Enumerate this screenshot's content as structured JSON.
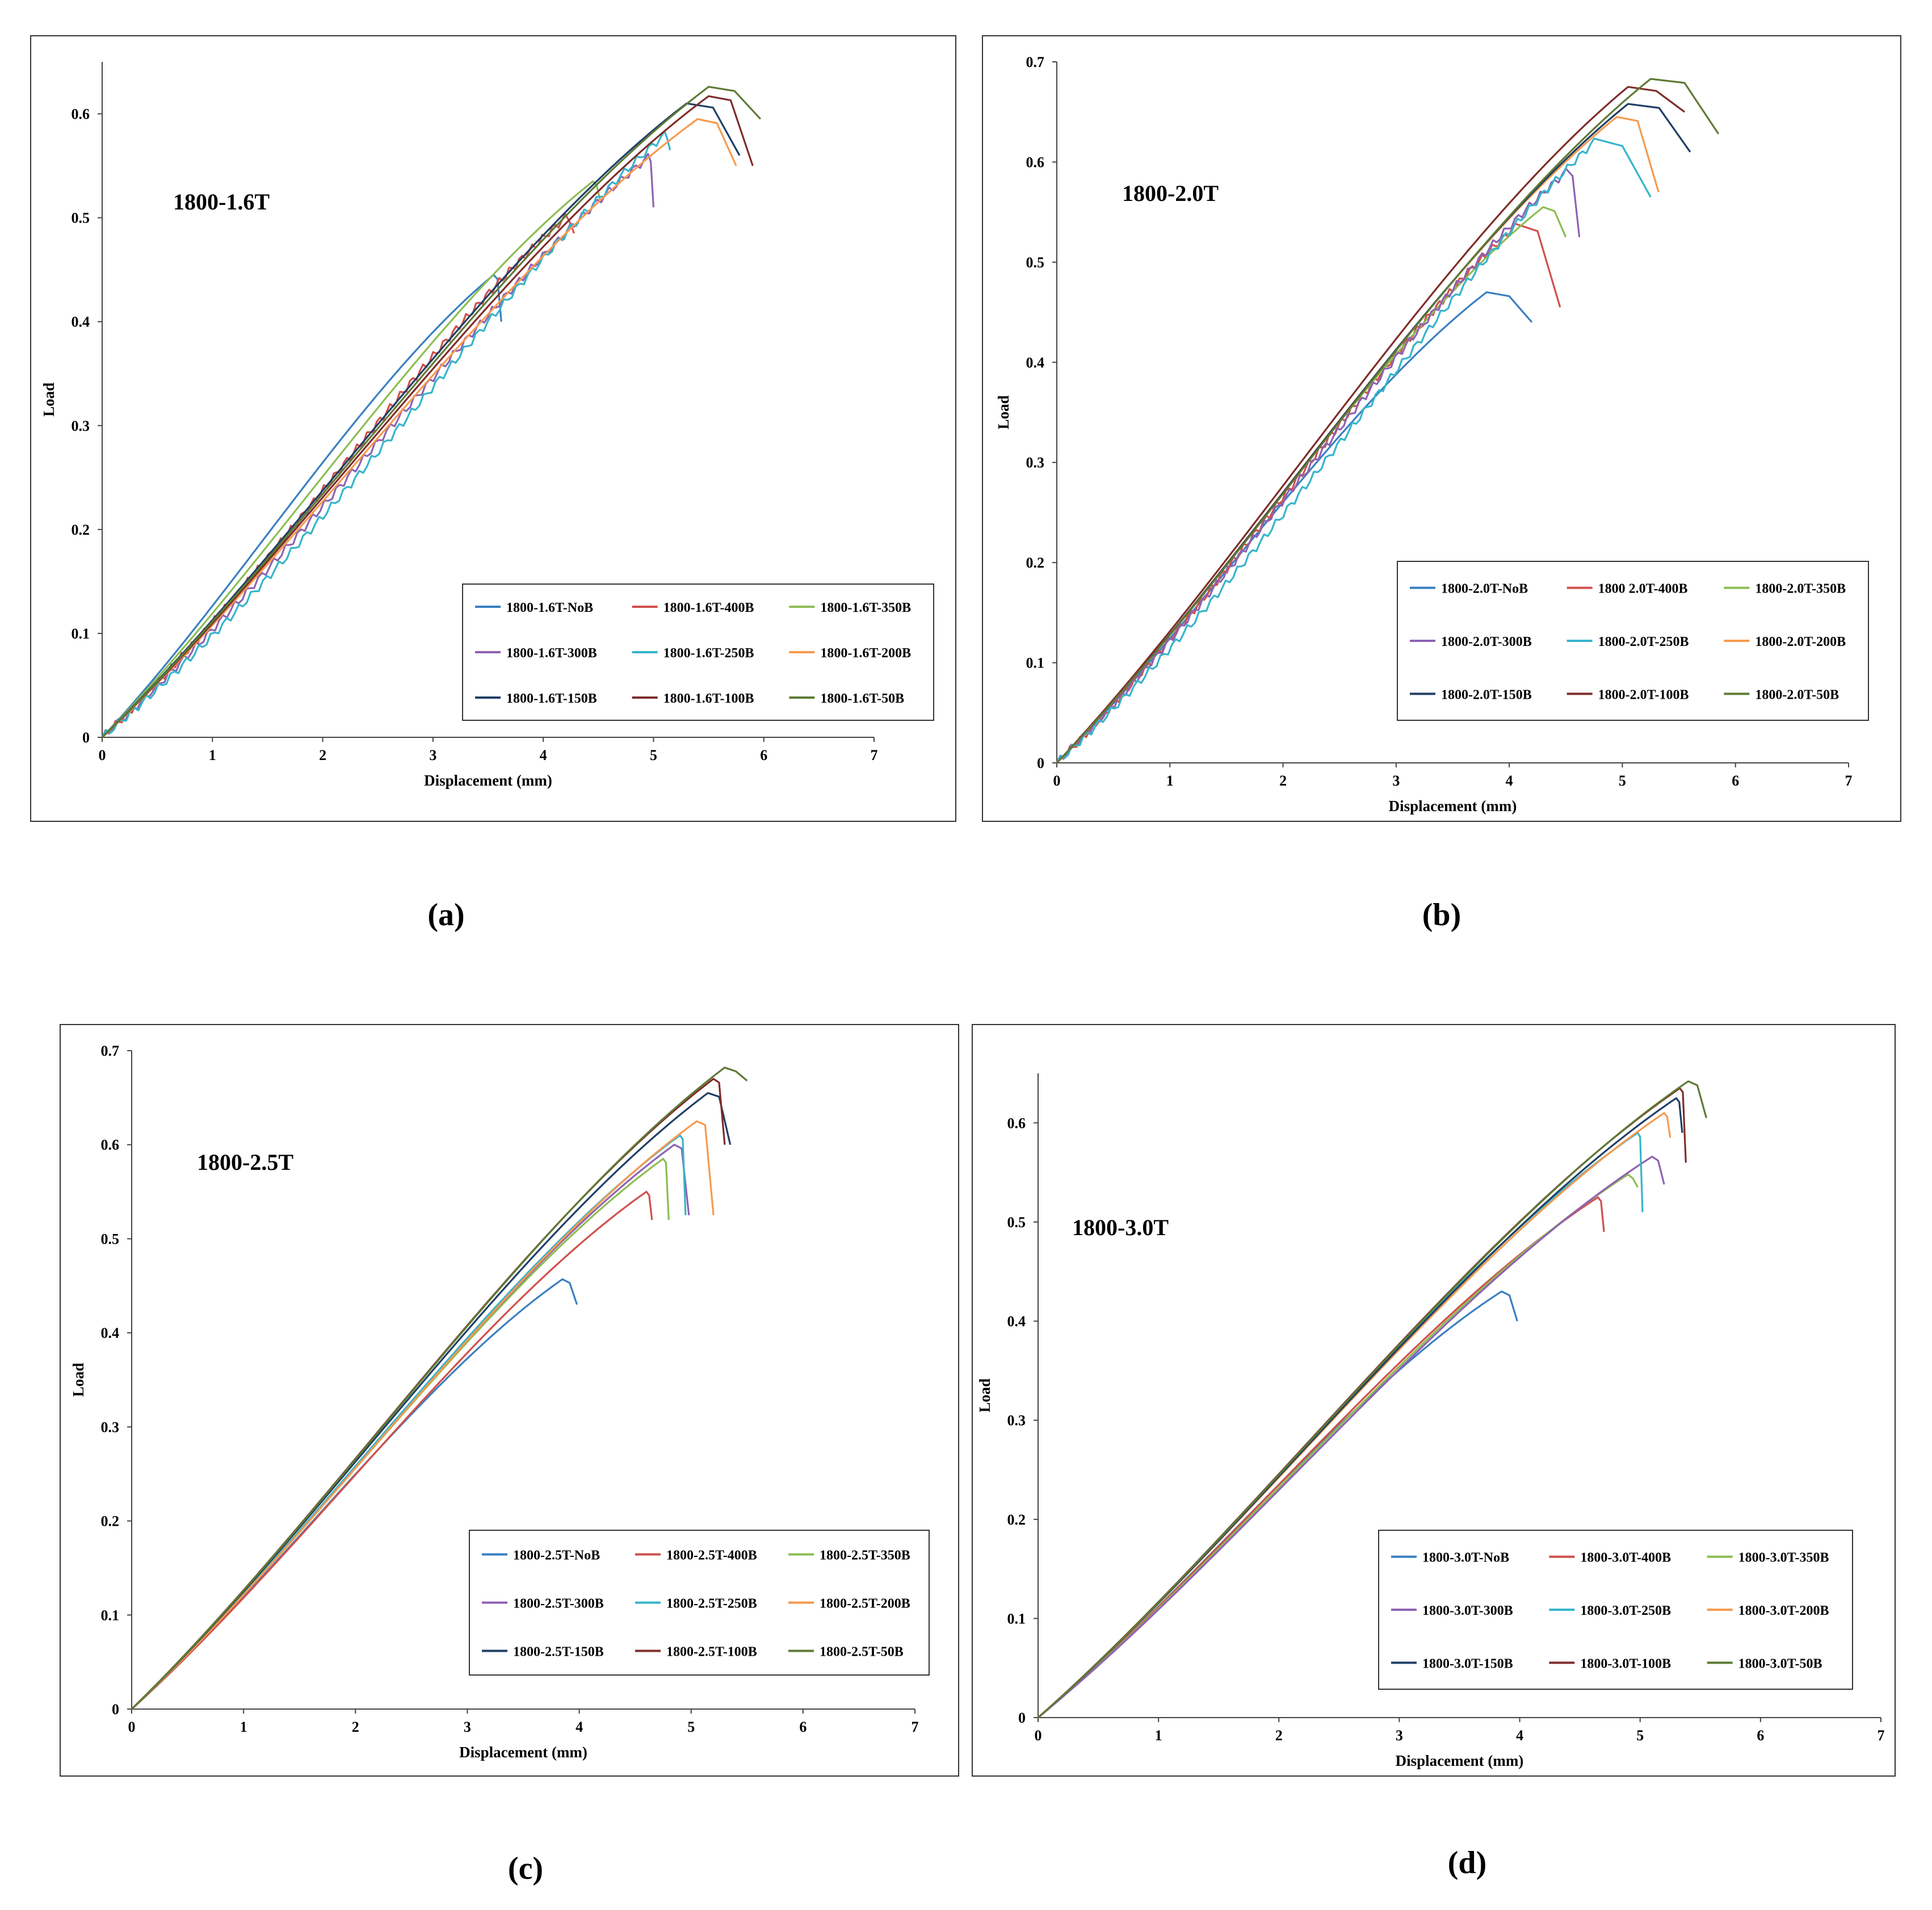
{
  "figure": {
    "captions": [
      "(a)",
      "(b)",
      "(c)",
      "(d)"
    ]
  },
  "chart_data": [
    {
      "type": "line",
      "panel_label": "(a)",
      "title": "1800-1.6T",
      "xlabel": "Displacement (mm)",
      "ylabel": "Load",
      "xlim": [
        0,
        7
      ],
      "ylim": [
        0,
        0.65
      ],
      "x_ticks": [
        "0",
        "1",
        "2",
        "3",
        "4",
        "5",
        "6",
        "7"
      ],
      "y_ticks": [
        "0",
        "0.1",
        "0.2",
        "0.3",
        "0.4",
        "0.5",
        "0.6"
      ],
      "y_tick_values": [
        0,
        0.1,
        0.2,
        0.3,
        0.4,
        0.5,
        0.6
      ],
      "legend_position": "bottom-right",
      "series": [
        {
          "name": "1800-1.6T-NoB",
          "color": "#3a7fc1",
          "peak_x": 3.55,
          "peak_y": 0.445,
          "end_x": 3.62,
          "end_y": 0.4
        },
        {
          "name": "1800-1.6T-400B",
          "color": "#d0504c",
          "peak_x": 4.2,
          "peak_y": 0.5,
          "end_x": 4.28,
          "end_y": 0.485
        },
        {
          "name": "1800-1.6T-350B",
          "color": "#8cbd52",
          "peak_x": 4.45,
          "peak_y": 0.535,
          "end_x": 4.52,
          "end_y": 0.515
        },
        {
          "name": "1800-1.6T-300B",
          "color": "#8f62b3",
          "peak_x": 4.95,
          "peak_y": 0.558,
          "end_x": 5.0,
          "end_y": 0.51
        },
        {
          "name": "1800-1.6T-250B",
          "color": "#36b4cc",
          "peak_x": 5.1,
          "peak_y": 0.58,
          "end_x": 5.15,
          "end_y": 0.565
        },
        {
          "name": "1800-1.6T-200B",
          "color": "#f79a4e",
          "peak_x": 5.4,
          "peak_y": 0.595,
          "end_x": 5.75,
          "end_y": 0.55
        },
        {
          "name": "1800-1.6T-150B",
          "color": "#203f66",
          "peak_x": 5.3,
          "peak_y": 0.61,
          "end_x": 5.78,
          "end_y": 0.56
        },
        {
          "name": "1800-1.6T-100B",
          "color": "#7f2d2a",
          "peak_x": 5.5,
          "peak_y": 0.617,
          "end_x": 5.9,
          "end_y": 0.55
        },
        {
          "name": "1800-1.6T-50B",
          "color": "#5e7a35",
          "peak_x": 5.5,
          "peak_y": 0.626,
          "end_x": 5.97,
          "end_y": 0.595
        }
      ]
    },
    {
      "type": "line",
      "panel_label": "(b)",
      "title": "1800-2.0T",
      "xlabel": "Displacement (mm)",
      "ylabel": "Load",
      "xlim": [
        0,
        7
      ],
      "ylim": [
        0,
        0.7
      ],
      "x_ticks": [
        "0",
        "1",
        "2",
        "3",
        "4",
        "5",
        "6",
        "7"
      ],
      "y_ticks": [
        "0",
        "0.1",
        "0.2",
        "0.3",
        "0.4",
        "0.5",
        "0.6",
        "0.7"
      ],
      "y_tick_values": [
        0,
        0.1,
        0.2,
        0.3,
        0.4,
        0.5,
        0.6,
        0.7
      ],
      "legend_position": "bottom-right",
      "series": [
        {
          "name": "1800-2.0T-NoB",
          "color": "#3a7fc1",
          "peak_x": 3.8,
          "peak_y": 0.47,
          "end_x": 4.2,
          "end_y": 0.44
        },
        {
          "name": "1800 2.0T-400B",
          "color": "#d0504c",
          "peak_x": 4.05,
          "peak_y": 0.535,
          "end_x": 4.45,
          "end_y": 0.455
        },
        {
          "name": "1800-2.0T-350B",
          "color": "#8cbd52",
          "peak_x": 4.3,
          "peak_y": 0.555,
          "end_x": 4.5,
          "end_y": 0.525
        },
        {
          "name": "1800-2.0T-300B",
          "color": "#8f62b3",
          "peak_x": 4.5,
          "peak_y": 0.59,
          "end_x": 4.62,
          "end_y": 0.525
        },
        {
          "name": "1800-2.0T-250B",
          "color": "#36b4cc",
          "peak_x": 4.75,
          "peak_y": 0.62,
          "end_x": 5.25,
          "end_y": 0.565
        },
        {
          "name": "1800-2.0T-200B",
          "color": "#f79a4e",
          "peak_x": 4.95,
          "peak_y": 0.645,
          "end_x": 5.32,
          "end_y": 0.57
        },
        {
          "name": "1800-2.0T-150B",
          "color": "#203f66",
          "peak_x": 5.05,
          "peak_y": 0.658,
          "end_x": 5.6,
          "end_y": 0.61
        },
        {
          "name": "1800-2.0T-100B",
          "color": "#7f2d2a",
          "peak_x": 5.05,
          "peak_y": 0.675,
          "end_x": 5.55,
          "end_y": 0.65
        },
        {
          "name": "1800-2.0T-50B",
          "color": "#5e7a35",
          "peak_x": 5.25,
          "peak_y": 0.683,
          "end_x": 5.85,
          "end_y": 0.628
        }
      ]
    },
    {
      "type": "line",
      "panel_label": "(c)",
      "title": "1800-2.5T",
      "xlabel": "Displacement (mm)",
      "ylabel": "Load",
      "xlim": [
        0,
        7
      ],
      "ylim": [
        0,
        0.7
      ],
      "x_ticks": [
        "0",
        "1",
        "2",
        "3",
        "4",
        "5",
        "6",
        "7"
      ],
      "y_ticks": [
        "0",
        "0.1",
        "0.2",
        "0.3",
        "0.4",
        "0.5",
        "0.6",
        "0.7"
      ],
      "y_tick_values": [
        0,
        0.1,
        0.2,
        0.3,
        0.4,
        0.5,
        0.6,
        0.7
      ],
      "legend_position": "bottom-right",
      "series": [
        {
          "name": "1800-2.5T-NoB",
          "color": "#3a7fc1",
          "peak_x": 3.85,
          "peak_y": 0.457,
          "end_x": 3.98,
          "end_y": 0.43
        },
        {
          "name": "1800-2.5T-400B",
          "color": "#d0504c",
          "peak_x": 4.6,
          "peak_y": 0.55,
          "end_x": 4.65,
          "end_y": 0.52
        },
        {
          "name": "1800-2.5T-350B",
          "color": "#8cbd52",
          "peak_x": 4.75,
          "peak_y": 0.585,
          "end_x": 4.8,
          "end_y": 0.52
        },
        {
          "name": "1800-2.5T-300B",
          "color": "#8f62b3",
          "peak_x": 4.85,
          "peak_y": 0.6,
          "end_x": 4.98,
          "end_y": 0.525
        },
        {
          "name": "1800-2.5T-250B",
          "color": "#36b4cc",
          "peak_x": 4.9,
          "peak_y": 0.61,
          "end_x": 4.95,
          "end_y": 0.525
        },
        {
          "name": "1800-2.5T-200B",
          "color": "#f79a4e",
          "peak_x": 5.05,
          "peak_y": 0.625,
          "end_x": 5.2,
          "end_y": 0.525
        },
        {
          "name": "1800-2.5T-150B",
          "color": "#203f66",
          "peak_x": 5.15,
          "peak_y": 0.655,
          "end_x": 5.35,
          "end_y": 0.6
        },
        {
          "name": "1800-2.5T-100B",
          "color": "#7f2d2a",
          "peak_x": 5.2,
          "peak_y": 0.67,
          "end_x": 5.3,
          "end_y": 0.6
        },
        {
          "name": "1800-2.5T-50B",
          "color": "#5e7a35",
          "peak_x": 5.3,
          "peak_y": 0.682,
          "end_x": 5.5,
          "end_y": 0.668
        }
      ]
    },
    {
      "type": "line",
      "panel_label": "(d)",
      "title": "1800-3.0T",
      "xlabel": "Displacement (mm)",
      "ylabel": "Load",
      "xlim": [
        0,
        7
      ],
      "ylim": [
        0,
        0.65
      ],
      "x_ticks": [
        "0",
        "1",
        "2",
        "3",
        "4",
        "5",
        "6",
        "7"
      ],
      "y_ticks": [
        "0",
        "0.1",
        "0.2",
        "0.3",
        "0.4",
        "0.5",
        "0.6"
      ],
      "y_tick_values": [
        0,
        0.1,
        0.2,
        0.3,
        0.4,
        0.5,
        0.6
      ],
      "legend_position": "bottom-right",
      "series": [
        {
          "name": "1800-3.0T-NoB",
          "color": "#3a7fc1",
          "peak_x": 3.85,
          "peak_y": 0.43,
          "end_x": 3.98,
          "end_y": 0.4
        },
        {
          "name": "1800-3.0T-400B",
          "color": "#d0504c",
          "peak_x": 4.65,
          "peak_y": 0.525,
          "end_x": 4.7,
          "end_y": 0.49
        },
        {
          "name": "1800-3.0T-350B",
          "color": "#8cbd52",
          "peak_x": 4.9,
          "peak_y": 0.548,
          "end_x": 4.98,
          "end_y": 0.535
        },
        {
          "name": "1800-3.0T-300B",
          "color": "#8f62b3",
          "peak_x": 5.1,
          "peak_y": 0.566,
          "end_x": 5.2,
          "end_y": 0.538
        },
        {
          "name": "1800-3.0T-250B",
          "color": "#36b4cc",
          "peak_x": 4.98,
          "peak_y": 0.59,
          "end_x": 5.02,
          "end_y": 0.51
        },
        {
          "name": "1800-3.0T-200B",
          "color": "#f79a4e",
          "peak_x": 5.2,
          "peak_y": 0.61,
          "end_x": 5.25,
          "end_y": 0.585
        },
        {
          "name": "1800-3.0T-150B",
          "color": "#203f66",
          "peak_x": 5.3,
          "peak_y": 0.625,
          "end_x": 5.35,
          "end_y": 0.59
        },
        {
          "name": "1800-3.0T-100B",
          "color": "#7f2d2a",
          "peak_x": 5.33,
          "peak_y": 0.635,
          "end_x": 5.38,
          "end_y": 0.56
        },
        {
          "name": "1800-3.0T-50B",
          "color": "#5e7a35",
          "peak_x": 5.4,
          "peak_y": 0.642,
          "end_x": 5.55,
          "end_y": 0.605
        }
      ]
    }
  ]
}
